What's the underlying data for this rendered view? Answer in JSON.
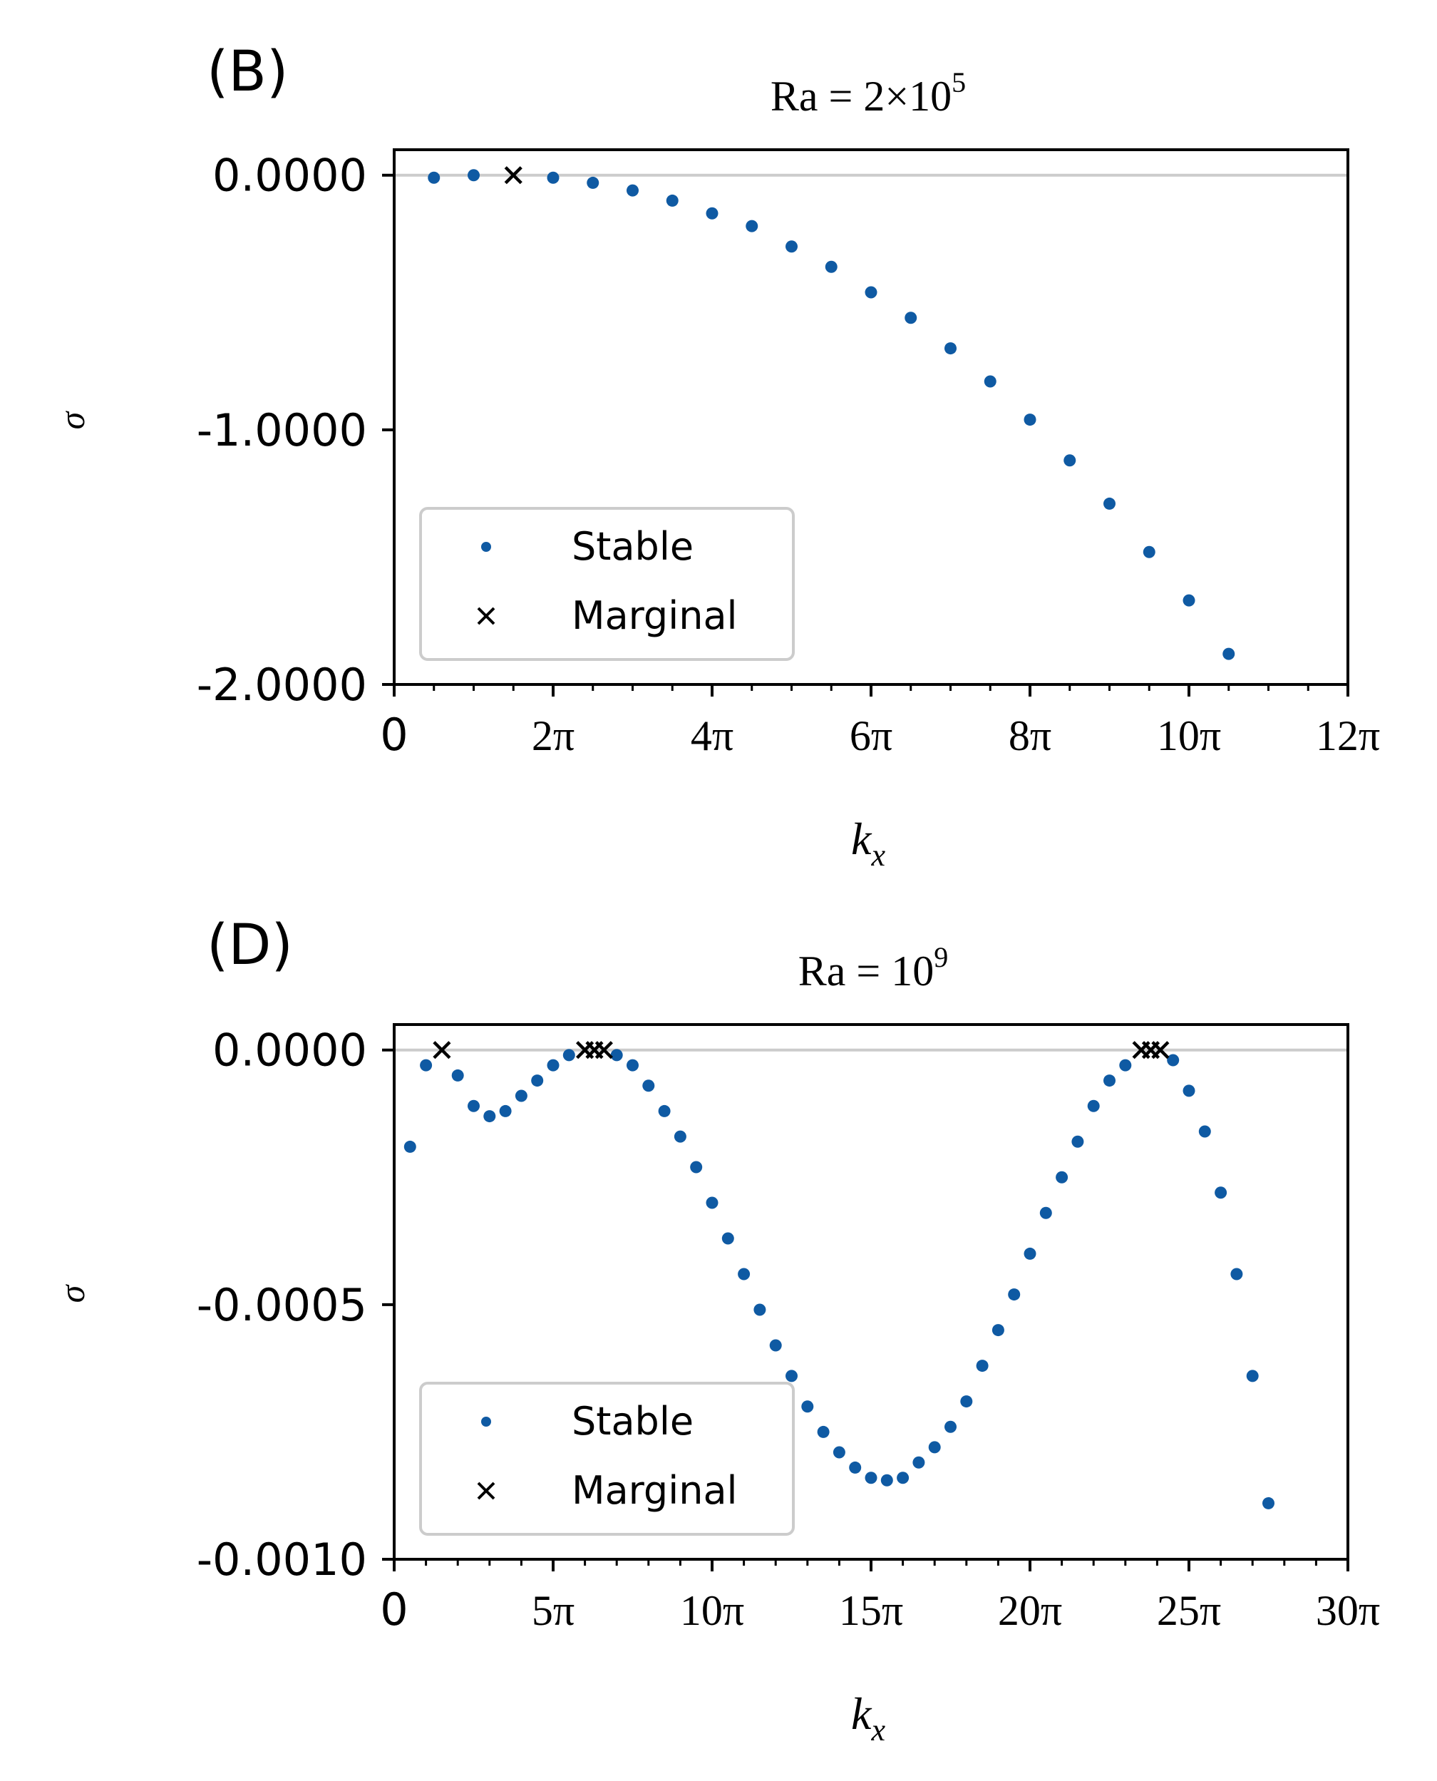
{
  "chart_data": [
    {
      "panel_label": "(B)",
      "type": "scatter",
      "title": "Ra = 2×10",
      "title_sup": "5",
      "xlabel": "k",
      "xlabel_sub": "x",
      "ylabel": "σ",
      "xlim": [
        0,
        12
      ],
      "x_units": "π",
      "ylim": [
        -2.0,
        0.1
      ],
      "xticks": [
        0,
        2,
        4,
        6,
        8,
        10,
        12
      ],
      "xtick_labels": [
        "0",
        "2π",
        "4π",
        "6π",
        "8π",
        "10π",
        "12π"
      ],
      "yticks": [
        0.0,
        -1.0,
        -2.0
      ],
      "ytick_labels": [
        "0.0000",
        "-1.0000",
        "-2.0000"
      ],
      "zero_line": true,
      "legend_position": "lower-left",
      "series": [
        {
          "name": "Stable",
          "marker": "dot",
          "color": "#0f5aa3",
          "x": [
            0.5,
            1.0,
            2.0,
            2.5,
            3.0,
            3.5,
            4.0,
            4.5,
            5.0,
            5.5,
            6.0,
            6.5,
            7.0,
            7.5,
            8.0,
            8.5,
            9.0,
            9.5,
            10.0,
            10.5
          ],
          "y": [
            -0.01,
            0.0,
            -0.01,
            -0.03,
            -0.06,
            -0.1,
            -0.15,
            -0.2,
            -0.28,
            -0.36,
            -0.46,
            -0.56,
            -0.68,
            -0.81,
            -0.96,
            -1.12,
            -1.29,
            -1.48,
            -1.67,
            -1.88
          ]
        },
        {
          "name": "Marginal",
          "marker": "x",
          "color": "#000000",
          "x": [
            1.5
          ],
          "y": [
            0.0
          ]
        }
      ]
    },
    {
      "panel_label": "(D)",
      "type": "scatter",
      "title": "Ra = 10",
      "title_sup": "9",
      "xlabel": "k",
      "xlabel_sub": "x",
      "ylabel": "σ",
      "xlim": [
        0,
        30
      ],
      "x_units": "π",
      "ylim": [
        -0.001,
        5e-05
      ],
      "xticks": [
        0,
        5,
        10,
        15,
        20,
        25,
        30
      ],
      "xtick_labels": [
        "0",
        "5π",
        "10π",
        "15π",
        "20π",
        "25π",
        "30π"
      ],
      "yticks": [
        0.0,
        -0.0005,
        -0.001
      ],
      "ytick_labels": [
        "0.0000",
        "-0.0005",
        "-0.0010"
      ],
      "zero_line": true,
      "legend_position": "lower-left",
      "series": [
        {
          "name": "Stable",
          "marker": "dot",
          "color": "#0f5aa3",
          "x": [
            0.5,
            1.0,
            2.0,
            2.5,
            3.0,
            3.5,
            4.0,
            4.5,
            5.0,
            5.5,
            7.0,
            7.5,
            8.0,
            8.5,
            9.0,
            9.5,
            10.0,
            10.5,
            11.0,
            11.5,
            12.0,
            12.5,
            13.0,
            13.5,
            14.0,
            14.5,
            15.0,
            15.5,
            16.0,
            16.5,
            17.0,
            17.5,
            18.0,
            18.5,
            19.0,
            19.5,
            20.0,
            20.5,
            21.0,
            21.5,
            22.0,
            22.5,
            23.0,
            24.5,
            25.0,
            25.5,
            26.0,
            26.5,
            27.0,
            27.5
          ],
          "y": [
            -0.00019,
            -3e-05,
            -5e-05,
            -0.00011,
            -0.00013,
            -0.00012,
            -9e-05,
            -6e-05,
            -3e-05,
            -1e-05,
            -1e-05,
            -3e-05,
            -7e-05,
            -0.00012,
            -0.00017,
            -0.00023,
            -0.0003,
            -0.00037,
            -0.00044,
            -0.00051,
            -0.00058,
            -0.00064,
            -0.0007,
            -0.00075,
            -0.00079,
            -0.00082,
            -0.00084,
            -0.000845,
            -0.00084,
            -0.00081,
            -0.00078,
            -0.00074,
            -0.00069,
            -0.00062,
            -0.00055,
            -0.00048,
            -0.0004,
            -0.00032,
            -0.00025,
            -0.00018,
            -0.00011,
            -6e-05,
            -3e-05,
            -2e-05,
            -8e-05,
            -0.00016,
            -0.00028,
            -0.00044,
            -0.00064,
            -0.00089
          ]
        },
        {
          "name": "Marginal",
          "marker": "x",
          "color": "#000000",
          "x": [
            1.5,
            6.0,
            6.3,
            6.6,
            23.5,
            23.8,
            24.1
          ],
          "y": [
            0.0,
            0.0,
            0.0,
            0.0,
            0.0,
            0.0,
            0.0
          ]
        }
      ]
    }
  ]
}
